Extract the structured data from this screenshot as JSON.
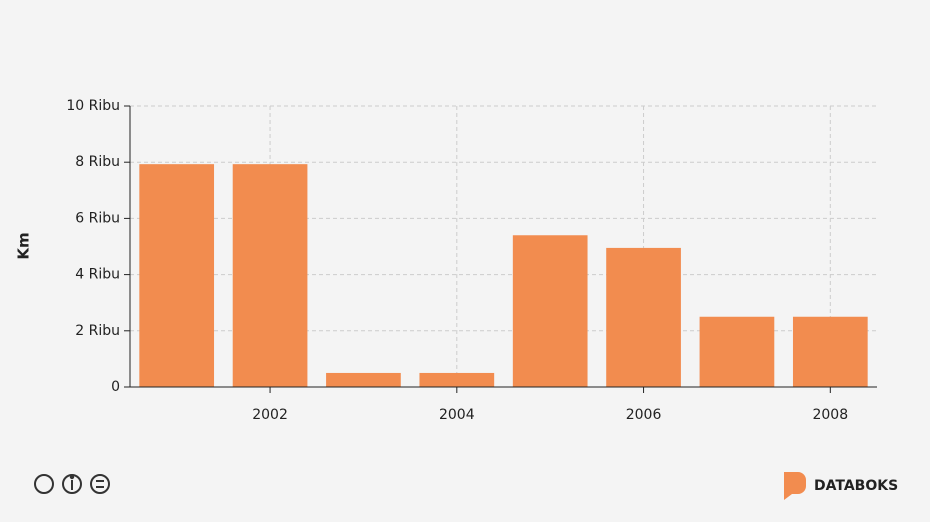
{
  "chart_data": {
    "type": "bar",
    "y_label": "Km",
    "x": [
      2001,
      2002,
      2003,
      2004,
      2005,
      2006,
      2007,
      2008
    ],
    "values": [
      7930,
      7930,
      500,
      500,
      5400,
      4950,
      2500,
      2500
    ],
    "color": "#f28c4f",
    "xlim": [
      2000.5,
      2008.5
    ],
    "xticks": [
      2002,
      2004,
      2006,
      2008
    ],
    "ylim": [
      0,
      10000
    ],
    "yticks": [
      0,
      {
        "value": 2000,
        "label": "2 Ribu"
      },
      {
        "value": 4000,
        "label": "4 Ribu"
      },
      {
        "value": 6000,
        "label": "6 Ribu"
      },
      {
        "value": 8000,
        "label": "8 Ribu"
      },
      {
        "value": 10000,
        "label": "10 Ribu"
      }
    ],
    "grid": true
  },
  "footer": {
    "brand": "DATABOKS"
  }
}
